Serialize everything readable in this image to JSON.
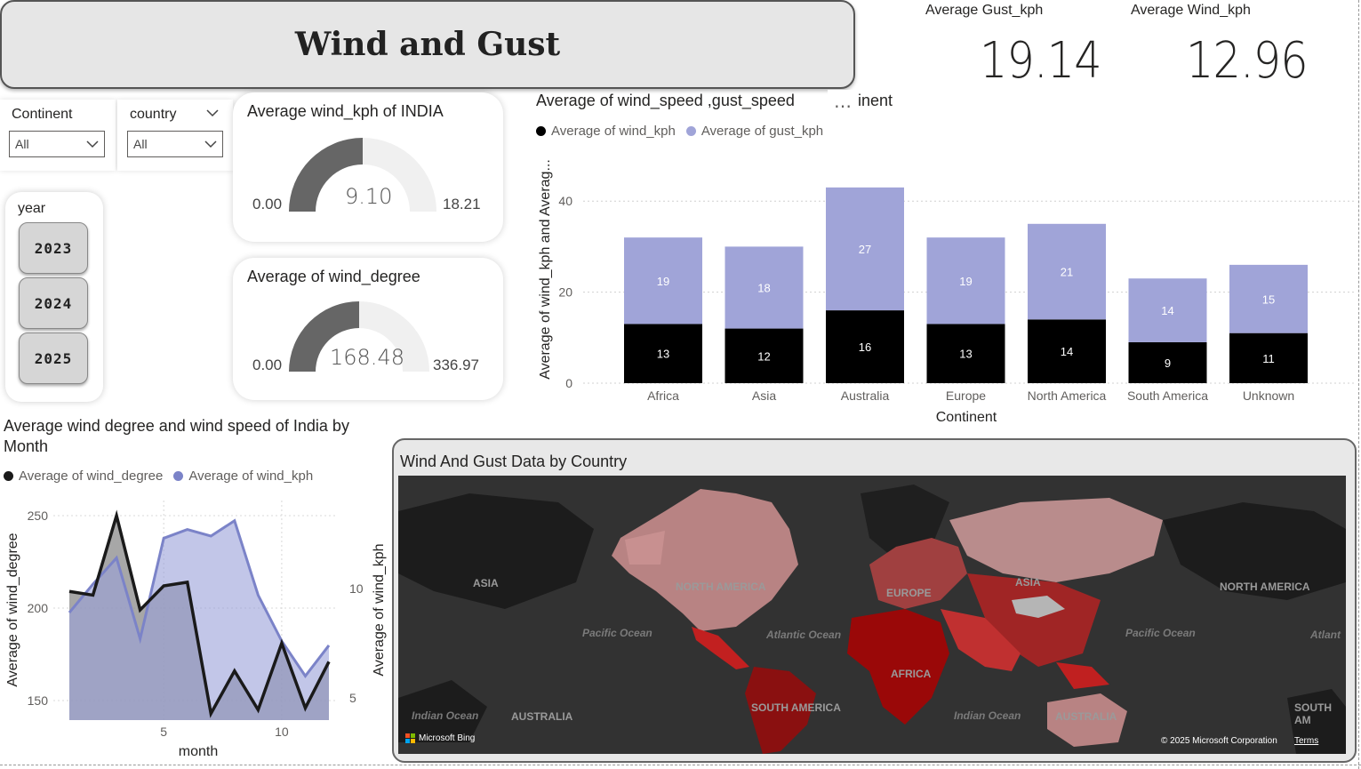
{
  "title": "Wind and Gust",
  "kpis": {
    "gust_label": "Average Gust_kph",
    "gust_value": "19.14",
    "wind_label": "Average Wind_kph",
    "wind_value": "12.96"
  },
  "slicers": {
    "continent_label": "Continent",
    "continent_value": "All",
    "country_label": "country",
    "country_value": "All",
    "year_label": "year",
    "years": [
      "2023",
      "2024",
      "2025"
    ]
  },
  "gauge_india": {
    "title": "Average wind_kph of INDIA",
    "min": "0.00",
    "value": "9.10",
    "max": "18.21",
    "fill_fraction": 0.5
  },
  "gauge_degree": {
    "title": "Average of wind_degree",
    "min": "0.00",
    "value": "168.48",
    "max": "336.97",
    "fill_fraction": 0.5
  },
  "bar_chart": {
    "title": "Average of wind_speed ,gust_speed",
    "title_suffix": "inent",
    "more_icon": "…",
    "legend": [
      "Average of wind_kph",
      "Average of gust_kph"
    ],
    "xlabel": "Continent",
    "ylabel": "Average of wind_kph and Averag...",
    "y_ticks": [
      "0",
      "20",
      "40"
    ]
  },
  "line_chart": {
    "title": "Average wind degree and wind speed of India by Month",
    "legend": [
      "Average of wind_degree",
      "Average of wind_kph"
    ],
    "xlabel": "month",
    "ylabel_left": "Average of wind_degree",
    "ylabel_right": "Average of wind_kph",
    "y_left_ticks": [
      "150",
      "200",
      "250"
    ],
    "y_right_ticks": [
      "5",
      "10"
    ],
    "x_ticks": [
      "5",
      "10"
    ]
  },
  "map": {
    "title": "Wind And Gust Data by Country",
    "labels": [
      "ASIA",
      "NORTH AMERICA",
      "EUROPE",
      "ASIA",
      "NORTH AMERICA",
      "AFRICA",
      "SOUTH AMERICA",
      "AUSTRALIA",
      "AUSTRALIA",
      "SOUTH AM"
    ],
    "oceans": [
      "Pacific Ocean",
      "Atlantic Ocean",
      "Pacific Ocean",
      "Atlant",
      "Indian Ocean",
      "Indian Ocean"
    ],
    "bing": "Microsoft Bing",
    "copyright": "© 2025 Microsoft Corporation",
    "terms": "Terms"
  },
  "colors": {
    "wind": "#000000",
    "gust": "#a0a4d8",
    "gauge_fill": "#666666",
    "gauge_track": "#f0f0f0",
    "line_degree": "#1a1a1a",
    "line_wind": "#7b83c8"
  },
  "chart_data": [
    {
      "type": "bar",
      "stacked": true,
      "categories": [
        "Africa",
        "Asia",
        "Australia",
        "Europe",
        "North America",
        "South America",
        "Unknown"
      ],
      "series": [
        {
          "name": "Average of wind_kph",
          "values": [
            13,
            12,
            16,
            13,
            14,
            9,
            11
          ]
        },
        {
          "name": "Average of gust_kph",
          "values": [
            19,
            18,
            27,
            19,
            21,
            14,
            15
          ]
        }
      ],
      "xlabel": "Continent",
      "ylabel": "Average of wind_kph and Averag...",
      "ylim": [
        0,
        45
      ],
      "grid": true,
      "legend": "top-left"
    },
    {
      "type": "area",
      "x": [
        1,
        2,
        3,
        4,
        5,
        6,
        7,
        8,
        9,
        10,
        11,
        12
      ],
      "series": [
        {
          "name": "Average of wind_degree",
          "axis": "left",
          "values": [
            209,
            207,
            250,
            199,
            212,
            214,
            143,
            166,
            145,
            181,
            146,
            171
          ]
        },
        {
          "name": "Average of wind_kph",
          "axis": "right",
          "values": [
            8.9,
            10.2,
            11.4,
            7.7,
            12.3,
            12.7,
            12.4,
            13.1,
            9.7,
            7.6,
            6.0,
            7.4
          ]
        }
      ],
      "xlabel": "month",
      "ylabel_left": "Average of wind_degree",
      "ylabel_right": "Average of wind_kph",
      "ylim_left": [
        140,
        255
      ],
      "ylim_right": [
        4,
        15
      ],
      "xlim": [
        1,
        12
      ],
      "grid": true,
      "legend": "top-left"
    }
  ]
}
